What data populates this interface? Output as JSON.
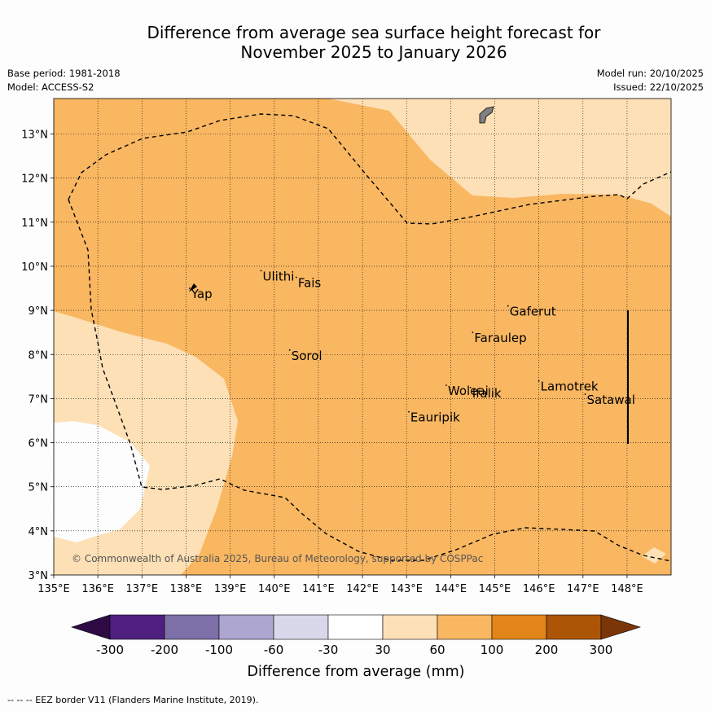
{
  "title": {
    "line1": "Difference from average sea surface height forecast for",
    "line2": "November 2025 to January 2026"
  },
  "meta": {
    "base_period": "Base period: 1981-2018",
    "model": "Model: ACCESS-S2",
    "model_run": "Model run: 20/10/2025",
    "issued": "Issued: 22/10/2025"
  },
  "map": {
    "lon_range": [
      135,
      149
    ],
    "lat_range": [
      3,
      13.8
    ],
    "lon_ticks": [
      135,
      136,
      137,
      138,
      139,
      140,
      141,
      142,
      143,
      144,
      145,
      146,
      147,
      148
    ],
    "lat_ticks": [
      3,
      4,
      5,
      6,
      7,
      8,
      9,
      10,
      11,
      12,
      13
    ],
    "lon_labels": [
      "135°E",
      "136°E",
      "137°E",
      "138°E",
      "139°E",
      "140°E",
      "141°E",
      "142°E",
      "143°E",
      "144°E",
      "145°E",
      "146°E",
      "147°E",
      "148°E"
    ],
    "lat_labels": [
      "3°N",
      "4°N",
      "5°N",
      "6°N",
      "7°N",
      "8°N",
      "9°N",
      "10°N",
      "11°N",
      "12°N",
      "13°N"
    ],
    "places": [
      {
        "name": "Yap",
        "lon": 138.08,
        "lat": 9.5
      },
      {
        "name": "Ulithi",
        "lon": 139.7,
        "lat": 9.9
      },
      {
        "name": "Fais",
        "lon": 140.5,
        "lat": 9.75
      },
      {
        "name": "Gaferut",
        "lon": 145.3,
        "lat": 9.1
      },
      {
        "name": "Faraulep",
        "lon": 144.5,
        "lat": 8.5
      },
      {
        "name": "Sorol",
        "lon": 140.35,
        "lat": 8.1
      },
      {
        "name": "Lamotrek",
        "lon": 146.0,
        "lat": 7.4
      },
      {
        "name": "Woleai",
        "lon": 143.9,
        "lat": 7.3
      },
      {
        "name": "Ifalik",
        "lon": 144.45,
        "lat": 7.25
      },
      {
        "name": "Satawal",
        "lon": 147.05,
        "lat": 7.1
      },
      {
        "name": "Eauripik",
        "lon": 143.05,
        "lat": 6.7
      }
    ],
    "copyright": "© Commonwealth of Australia 2025, Bureau of Meteorology, supported by COSPPac"
  },
  "colorbar": {
    "title": "Difference from average (mm)",
    "tick_labels": [
      "-300",
      "-200",
      "-100",
      "-60",
      "-30",
      "30",
      "60",
      "100",
      "200",
      "300"
    ],
    "colors": {
      "below_min": "#2e0b45",
      "bins": [
        "#4f1f7f",
        "#7d6fa8",
        "#ada6d0",
        "#d8d8ea",
        "#ffffff",
        "#fde0b6",
        "#f9b762",
        "#e2851a",
        "#ad5507"
      ],
      "above_max": "#7a3608"
    }
  },
  "footer": "--  --  -- EEZ border V11 (Flanders Marine Institute, 2019)."
}
